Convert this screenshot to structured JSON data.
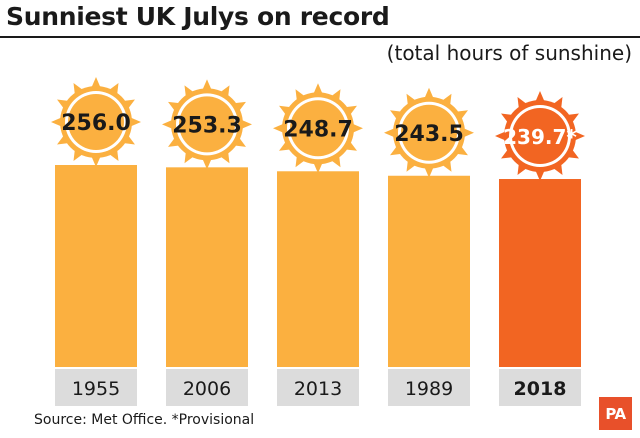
{
  "header": {
    "title": "Sunniest UK Julys on record",
    "subtitle": "(total hours of sunshine)"
  },
  "footer": {
    "source": "Source: Met Office. *Provisional",
    "logo": "PA"
  },
  "colors": {
    "bar_default": "#FBB040",
    "bar_highlight": "#F26522",
    "sun_default": "#FBB040",
    "sun_highlight": "#F26522",
    "label_bg": "#DCDCDC",
    "text": "#1A1A1A"
  },
  "chart_data": {
    "type": "bar",
    "title": "Sunniest UK Julys on record",
    "subtitle": "(total hours of sunshine)",
    "xlabel": "",
    "ylabel": "",
    "categories": [
      "1955",
      "2006",
      "2013",
      "1989",
      "2018"
    ],
    "values": [
      256.0,
      253.3,
      248.7,
      243.5,
      239.7
    ],
    "value_labels": [
      "256.0",
      "253.3",
      "248.7",
      "243.5",
      "239.7*"
    ],
    "highlight": [
      "2018"
    ],
    "grid": false,
    "legend": "none"
  }
}
